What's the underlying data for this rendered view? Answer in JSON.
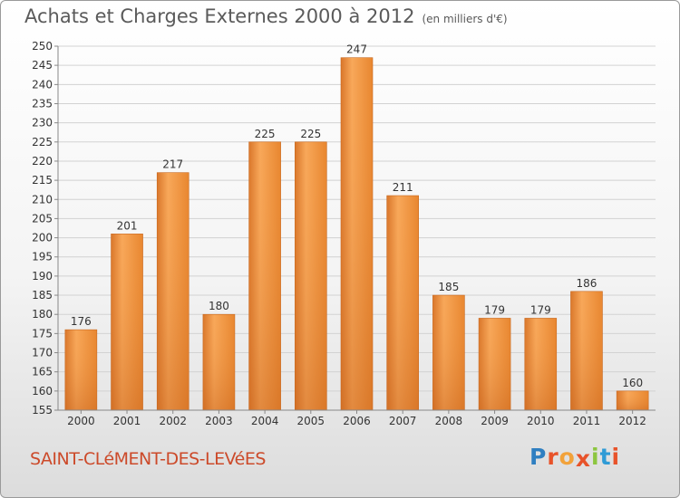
{
  "header": {
    "title": "Achats et Charges Externes 2000 à 2012",
    "subtitle": "(en milliers d'€)"
  },
  "footer": {
    "commune": "SAINT-CLéMENT-DES-LEVéES",
    "logo_letters": [
      "P",
      "r",
      "o",
      "x",
      "i",
      "t",
      "i"
    ],
    "logo_colors": [
      "#2f7fc1",
      "#e8532a",
      "#f2a23a",
      "#e8532a",
      "#8cc63f",
      "#2f9bd6",
      "#e8532a"
    ]
  },
  "colors": {
    "bar": "#f0903a",
    "bar_light": "#f8a85a",
    "bar_dark": "#d9762a",
    "grid": "#d2d2d2",
    "text": "#333333"
  },
  "chart_data": {
    "type": "bar",
    "categories": [
      "2000",
      "2001",
      "2002",
      "2003",
      "2004",
      "2005",
      "2006",
      "2007",
      "2008",
      "2009",
      "2010",
      "2011",
      "2012"
    ],
    "values": [
      176,
      201,
      217,
      180,
      225,
      225,
      247,
      211,
      185,
      179,
      179,
      186,
      160
    ],
    "ylim": [
      155,
      250
    ],
    "yticks": [
      155,
      160,
      165,
      170,
      175,
      180,
      185,
      190,
      195,
      200,
      205,
      210,
      215,
      220,
      225,
      230,
      235,
      240,
      245,
      250
    ],
    "grid": true
  }
}
